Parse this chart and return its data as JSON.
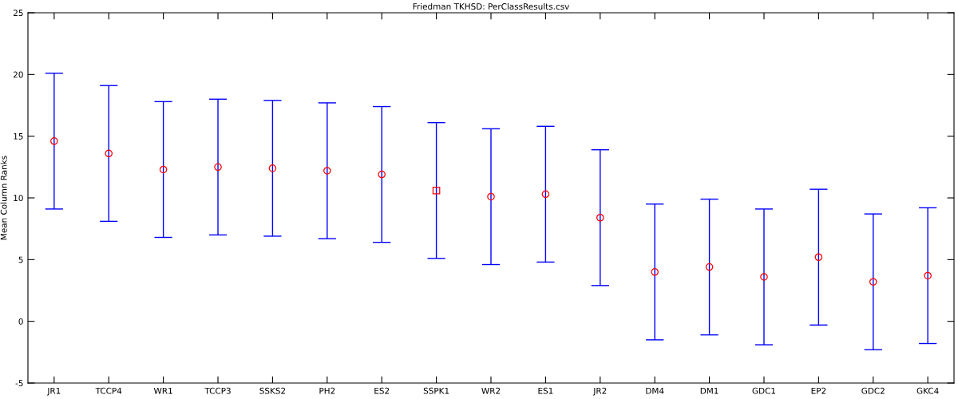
{
  "chart_data": {
    "type": "scatter",
    "title": "Friedman TKHSD: PerClassResults.csv",
    "ylabel": "Mean Column Ranks",
    "categories": [
      "JR1",
      "TCCP4",
      "WR1",
      "TCCP3",
      "SSKS2",
      "PH2",
      "ES2",
      "SSPK1",
      "WR2",
      "ES1",
      "JR2",
      "DM4",
      "DM1",
      "GDC1",
      "EP2",
      "GDC2",
      "GKC4"
    ],
    "series": [
      {
        "color": "#ff0000",
        "marker": "circle",
        "values": [
          14.6,
          13.6,
          12.3,
          12.5,
          12.4,
          12.2,
          11.9,
          null,
          10.1,
          10.3,
          8.4,
          4.0,
          4.4,
          3.6,
          5.2,
          3.2,
          3.7
        ],
        "errors": [
          5.5,
          5.5,
          5.5,
          5.5,
          5.5,
          5.5,
          5.5,
          null,
          5.5,
          5.5,
          5.5,
          5.5,
          5.5,
          5.5,
          5.5,
          5.5,
          5.5
        ]
      },
      {
        "color": "#ff0000",
        "marker": "square",
        "values": [
          null,
          null,
          null,
          null,
          null,
          null,
          null,
          10.6,
          null,
          null,
          null,
          null,
          null,
          null,
          null,
          null,
          null
        ],
        "errors": [
          null,
          null,
          null,
          null,
          null,
          null,
          null,
          5.5,
          null,
          null,
          null,
          null,
          null,
          null,
          null,
          null,
          null
        ]
      }
    ],
    "ylim": [
      -5,
      25
    ],
    "yticks": [
      -5,
      0,
      5,
      10,
      15,
      20,
      25
    ],
    "grid": false
  }
}
